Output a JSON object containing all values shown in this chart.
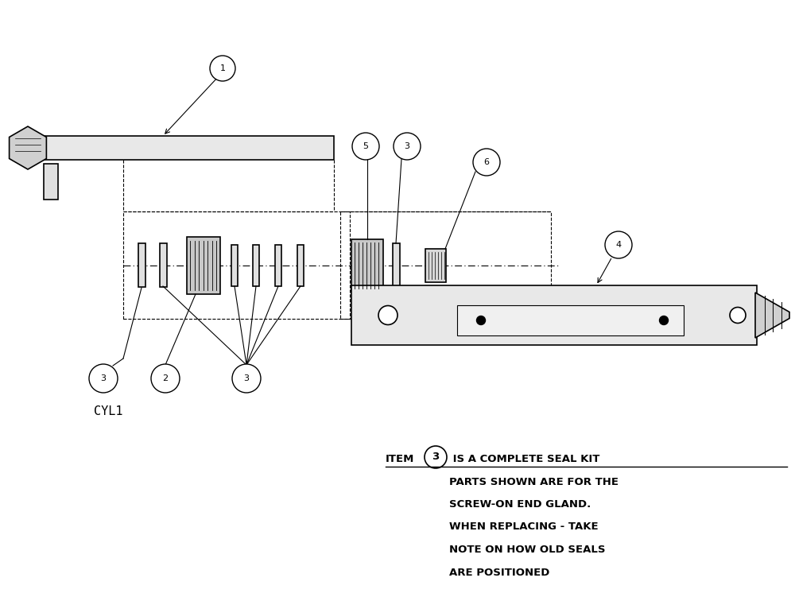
{
  "bg_color": "#ffffff",
  "cyl1_label": "CYL1",
  "annotation_text_line2": "PARTS SHOWN ARE FOR THE",
  "annotation_text_line3": "SCREW-ON END GLAND.",
  "annotation_text_line4": "WHEN REPLACING - TAKE",
  "annotation_text_line5": "NOTE ON HOW OLD SEALS",
  "annotation_text_line6": "ARE POSITIONED",
  "line_color": "#000000",
  "font_size": 9
}
